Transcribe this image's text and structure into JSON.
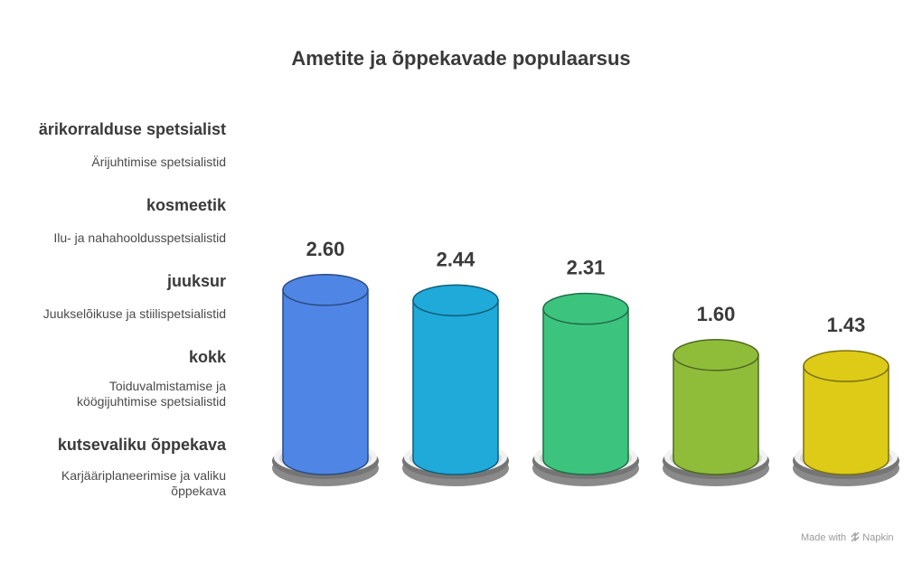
{
  "chart_data": {
    "type": "bar",
    "title": "Ametite ja õppekavade populaarsus",
    "categories": [
      "ärikorralduse spetsialist",
      "kosmeetik",
      "juuksur",
      "kokk",
      "kutsevaliku õppekava"
    ],
    "descriptions": [
      "Ärijuhtimise spetsialistid",
      "Ilu- ja nahahooldusspetsialistid",
      "Juukselõikuse ja stiilispetsialistid",
      "Toiduvalmistamise ja köögijuhtimise spetsialistid",
      "Karjääriplaneerimise ja valiku õppekava"
    ],
    "values": [
      2.6,
      2.44,
      2.31,
      1.6,
      1.43
    ],
    "value_labels": [
      "2.60",
      "2.44",
      "2.31",
      "1.60",
      "1.43"
    ],
    "colors": [
      "#4f86e6",
      "#1faad9",
      "#3cc47f",
      "#8fbd3a",
      "#ddcb18"
    ],
    "base_color": "#8a8a8a"
  },
  "footer": {
    "made_with": "Made with",
    "brand": "Napkin"
  }
}
